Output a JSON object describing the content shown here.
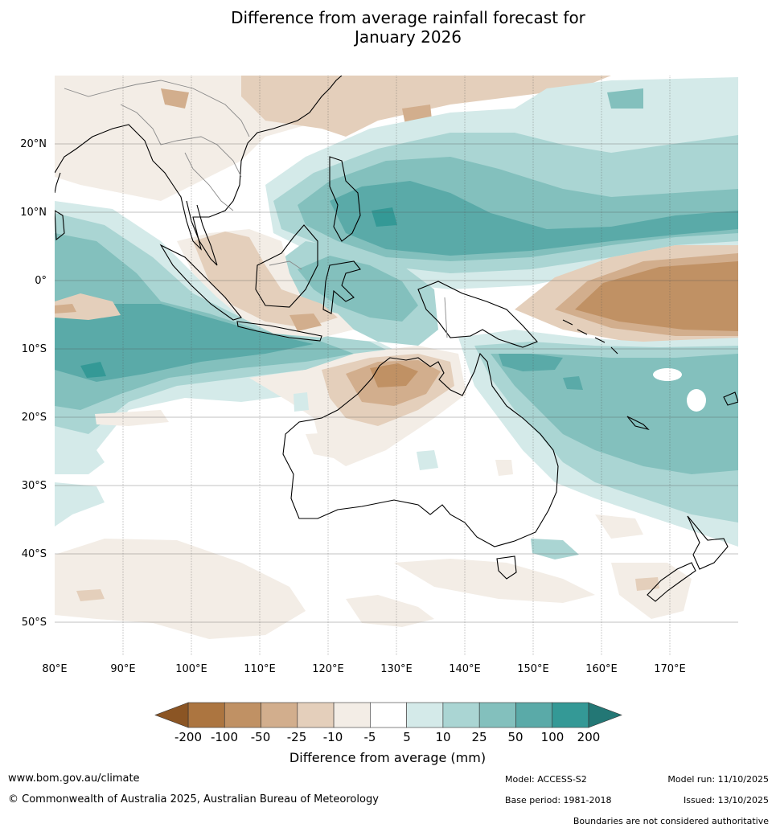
{
  "title": {
    "line1": "Difference from average rainfall forecast for",
    "line2": "January 2026"
  },
  "map": {
    "lat_labels": [
      "20°N",
      "10°N",
      "0°",
      "10°S",
      "20°S",
      "30°S",
      "40°S",
      "50°S"
    ],
    "lon_labels": [
      "80°E",
      "90°E",
      "100°E",
      "110°E",
      "120°E",
      "130°E",
      "140°E",
      "150°E",
      "160°E",
      "170°E"
    ]
  },
  "colorbar": {
    "ticks": [
      "-200",
      "-100",
      "-50",
      "-25",
      "-10",
      "-5",
      "5",
      "10",
      "25",
      "50",
      "100",
      "200"
    ],
    "colors": [
      "#ac7540",
      "#c09164",
      "#d2ae8d",
      "#e4cfbb",
      "#f3ede6",
      "#ffffff",
      "#d4eae9",
      "#aad5d3",
      "#83c0bd",
      "#5aaaa8",
      "#349996"
    ],
    "under_color": "#8b5524",
    "over_color": "#237775",
    "label": "Difference from average (mm)"
  },
  "palette": {
    "brown_deep": "#c09164",
    "brown_mid": "#d2ae8d",
    "brown_light": "#e4cfbb",
    "brown_pale": "#f3ede6",
    "teal_pale": "#d4eae9",
    "teal_light": "#aad5d3",
    "teal_mid": "#83c0bd",
    "teal_deep": "#5aaaa8",
    "teal_strong": "#349996"
  },
  "footer": {
    "website": "www.bom.gov.au/climate",
    "copyright": "© Commonwealth of Australia 2025, Australian Bureau of Meteorology",
    "model": "Model: ACCESS-S2",
    "base_period": "Base period: 1981-2018",
    "model_run": "Model run: 11/10/2025",
    "issued": "Issued: 13/10/2025",
    "disclaimer": "Boundaries are not considered authoritative"
  }
}
